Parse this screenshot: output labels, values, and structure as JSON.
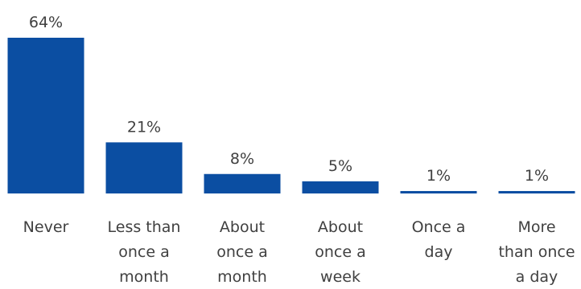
{
  "chart_data": {
    "type": "bar",
    "categories": [
      [
        "Never"
      ],
      [
        "Less than",
        "once a",
        "month"
      ],
      [
        "About",
        "once a",
        "month"
      ],
      [
        "About",
        "once a",
        "week"
      ],
      [
        "Once a",
        "day"
      ],
      [
        "More",
        "than once",
        "a day"
      ]
    ],
    "values": [
      64,
      21,
      8,
      5,
      1,
      1
    ],
    "data_labels": [
      "64%",
      "21%",
      "8%",
      "5%",
      "1%",
      "1%"
    ],
    "ylim": [
      0,
      64
    ],
    "grid": false,
    "colors": {
      "bar": "#0b4ea2",
      "text": "#404040"
    }
  }
}
